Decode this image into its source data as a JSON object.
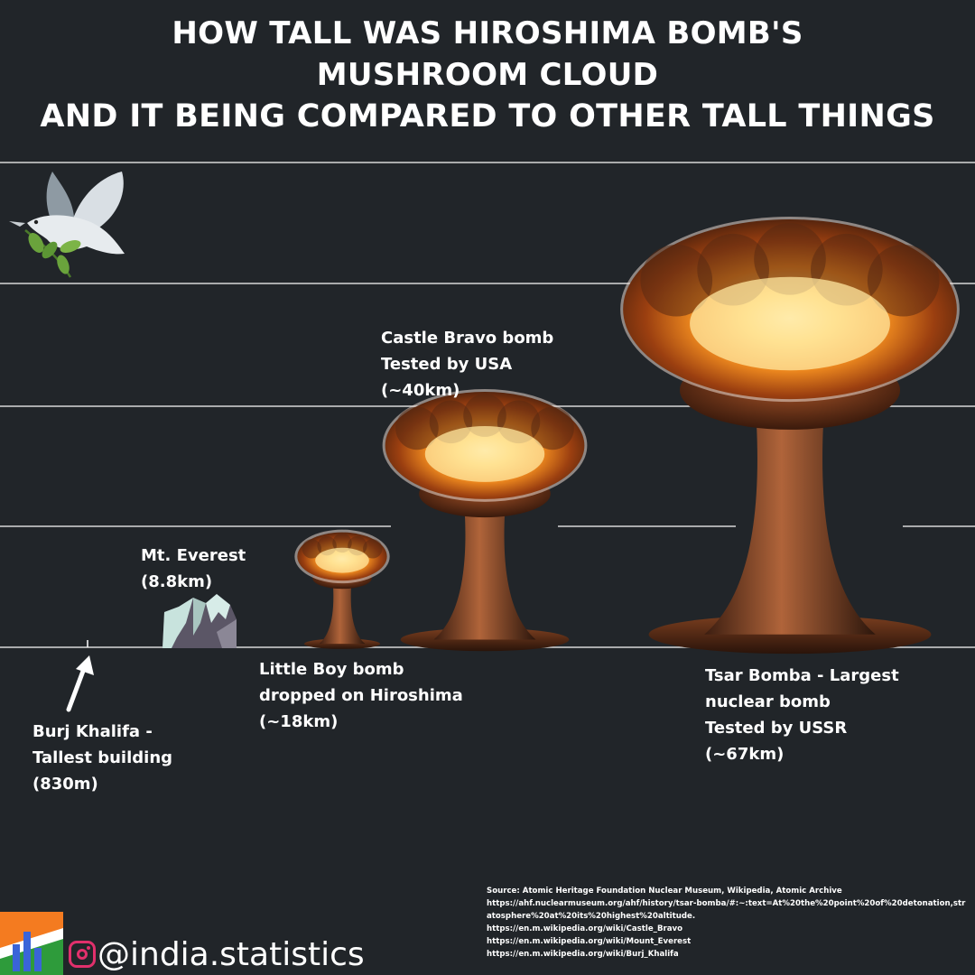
{
  "title_lines": [
    "HOW TALL WAS HIROSHIMA BOMB'S",
    "MUSHROOM CLOUD",
    "AND IT BEING COMPARED TO OTHER TALL THINGS"
  ],
  "labels": {
    "burj": [
      "Burj Khalifa -",
      "Tallest building",
      "(830m)"
    ],
    "everest": [
      "Mt. Everest",
      "(8.8km)"
    ],
    "little_boy": [
      "Little Boy bomb",
      "dropped on Hiroshima",
      "(~18km)"
    ],
    "castle_bravo": [
      "Castle Bravo bomb",
      "Tested by USA",
      "(~40km)"
    ],
    "tsar": [
      "Tsar Bomba - Largest",
      "nuclear bomb",
      "Tested by USSR",
      "(~67km)"
    ]
  },
  "chart_data": {
    "type": "bar",
    "categories": [
      "Burj Khalifa",
      "Mt. Everest",
      "Little Boy bomb",
      "Castle Bravo bomb",
      "Tsar Bomba"
    ],
    "values": [
      0.83,
      8.8,
      18,
      40,
      67
    ],
    "unit": "km",
    "grid": true
  },
  "source": {
    "heading": "Source: Atomic Heritage Foundation Nuclear Museum, Wikipedia, Atomic Archive",
    "links": [
      "https://ahf.nuclearmuseum.org/ahf/history/tsar-bomba/#:~:text=At%20the%20point%20of%20detonation,stratosphere%20at%20its%20highest%20altitude.",
      "https://en.m.wikipedia.org/wiki/Castle_Bravo",
      "https://en.m.wikipedia.org/wiki/Mount_Everest",
      "https://en.m.wikipedia.org/wiki/Burj_Khalifa"
    ]
  },
  "footer": {
    "handle": "@india.statistics"
  },
  "icons": {
    "peace": "dove-icon",
    "social": "instagram-icon",
    "brand": "india-statistics-logo-icon",
    "mountain": "mountain-icon",
    "arrow": "arrow-up-icon"
  },
  "colors": {
    "background": "#212529",
    "text": "#ffffff",
    "gridline": "#d8d8d8",
    "fire_core": "#ffe08a",
    "fire_mid": "#f08a1c",
    "smoke": "#3a2012"
  }
}
